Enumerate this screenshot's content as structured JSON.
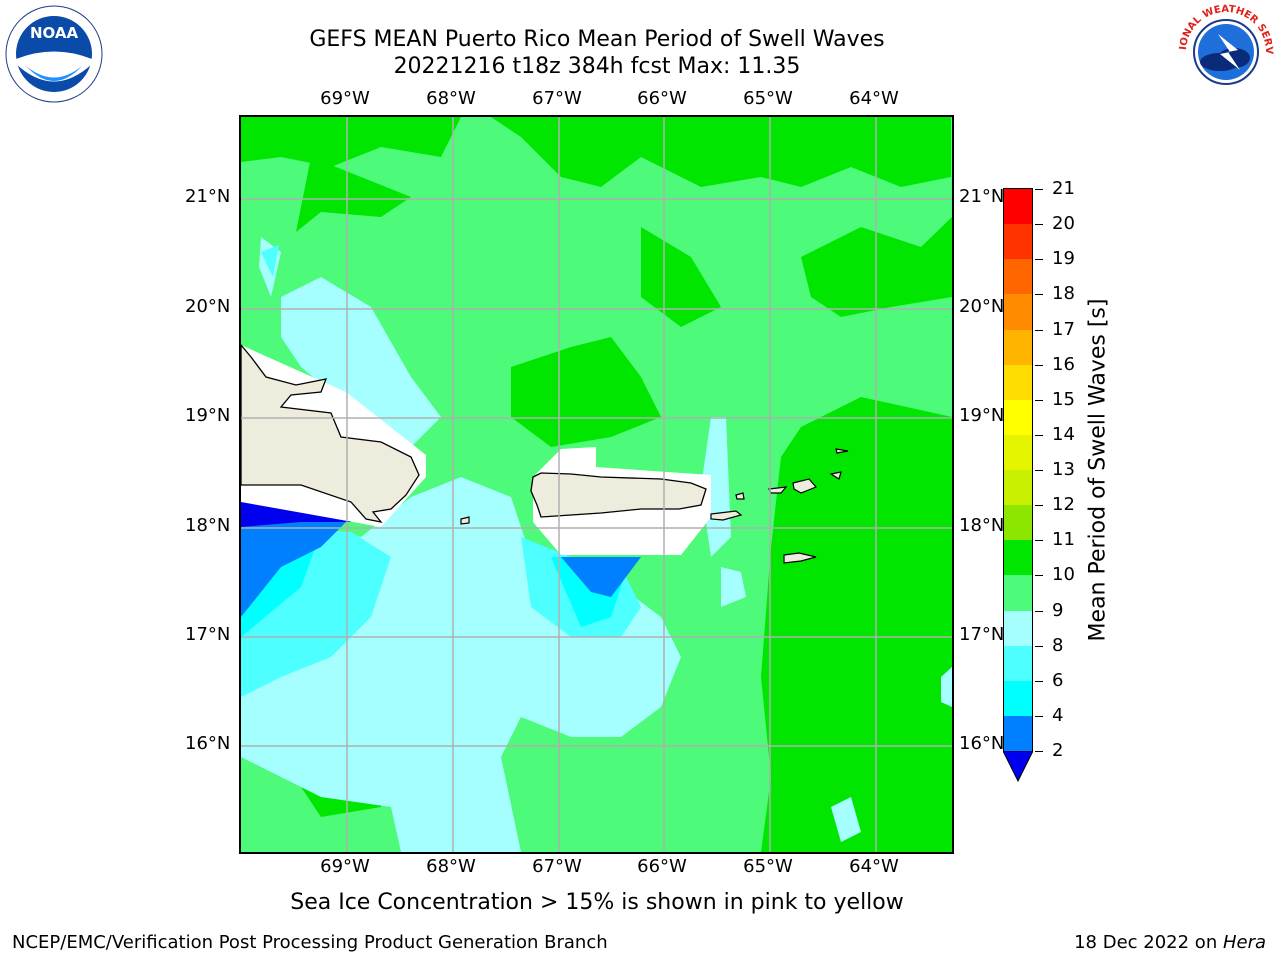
{
  "title": {
    "line1": "GEFS MEAN Puerto Rico Mean Period of Swell Waves",
    "line2": "20221216 t18z 384h fcst   Max: 11.35"
  },
  "logos": {
    "left": {
      "text": "NOAA",
      "ring": "NATIONAL OCEANIC AND ATMOSPHERIC ADMINISTRATION · U.S. DEPARTMENT OF COMMERCE"
    },
    "right": {
      "ring": "NATIONAL WEATHER SERVICE"
    }
  },
  "map": {
    "lon_labels": [
      "69°W",
      "68°W",
      "67°W",
      "66°W",
      "65°W",
      "64°W"
    ],
    "lat_labels": [
      "21°N",
      "20°N",
      "19°N",
      "18°N",
      "17°N",
      "16°N"
    ],
    "land_color": "#eeecdc",
    "grid_color": "#b0b0b0"
  },
  "colorbar": {
    "label": "Mean Period of Swell Waves [s]",
    "ticks": [
      "21",
      "20",
      "19",
      "18",
      "17",
      "16",
      "15",
      "14",
      "13",
      "12",
      "11",
      "10",
      "9",
      "8",
      "6",
      "4",
      "2"
    ],
    "colors": [
      "#ff0000",
      "#ff3300",
      "#ff6600",
      "#ff8c00",
      "#ffb400",
      "#ffdd00",
      "#ffff00",
      "#e5f500",
      "#c8f000",
      "#8ce600",
      "#00e600",
      "#4dfa7a",
      "#a5ffff",
      "#4dffff",
      "#00ffff",
      "#0080ff"
    ],
    "under_color": "#0000ee"
  },
  "caption": "Sea Ice Concentration > 15% is shown in pink to yellow",
  "footer": {
    "left": "NCEP/EMC/Verification Post Processing Product Generation Branch",
    "date": "18 Dec 2022 on ",
    "machine": "Hera"
  }
}
